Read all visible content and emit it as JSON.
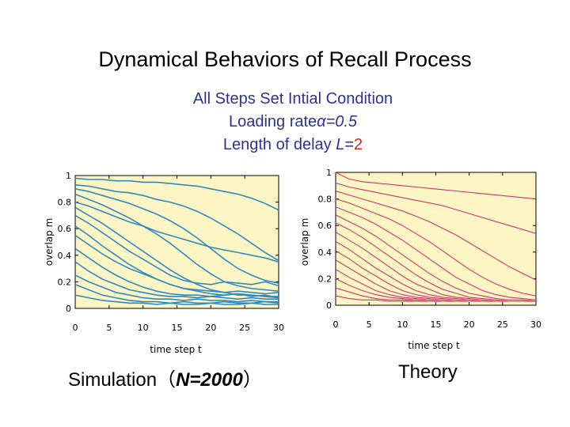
{
  "title": "Dynamical Behaviors of Recall Process",
  "subtitle": {
    "line1": "All Steps Set Intial Condition",
    "line2_prefix": "Loading rate",
    "line2_value": "α=0.5",
    "line3_prefix": "Length of delay ",
    "line3_var": "L",
    "line3_eq": "=",
    "line3_value": "2"
  },
  "captions": {
    "left_prefix": "Simulation（",
    "left_var": "N=2000",
    "left_suffix": "）",
    "right": "Theory"
  },
  "colors": {
    "plot_bg": "#fdf5c4",
    "simulation_line": "#2f8ac4",
    "theory_line": "#c8386a",
    "subtitle": "#2e3192",
    "highlight": "#e02020"
  },
  "chart_data": [
    {
      "type": "line",
      "panel": "simulation",
      "xlabel": "time step t",
      "ylabel": "overlap m",
      "xlim": [
        0,
        30
      ],
      "ylim": [
        0,
        1
      ],
      "xticks": [
        0,
        5,
        10,
        15,
        20,
        25,
        30
      ],
      "yticks": [
        0,
        0.2,
        0.4,
        0.6,
        0.8,
        1
      ],
      "ytick_labels": [
        "0",
        "0.2",
        "0.4",
        "0.6",
        "0.8",
        "1"
      ],
      "grid": false,
      "x": [
        0,
        2,
        4,
        6,
        8,
        10,
        12,
        14,
        16,
        18,
        20,
        22,
        24,
        26,
        28,
        30
      ],
      "series": [
        {
          "values": [
            0.98,
            0.97,
            0.97,
            0.96,
            0.96,
            0.95,
            0.95,
            0.94,
            0.93,
            0.92,
            0.9,
            0.88,
            0.86,
            0.83,
            0.79,
            0.74
          ]
        },
        {
          "values": [
            0.93,
            0.92,
            0.9,
            0.88,
            0.87,
            0.85,
            0.82,
            0.8,
            0.77,
            0.73,
            0.68,
            0.62,
            0.56,
            0.49,
            0.42,
            0.36
          ]
        },
        {
          "values": [
            0.9,
            0.88,
            0.85,
            0.82,
            0.79,
            0.75,
            0.71,
            0.66,
            0.6,
            0.53,
            0.45,
            0.37,
            0.3,
            0.25,
            0.21,
            0.19
          ]
        },
        {
          "values": [
            0.86,
            0.82,
            0.78,
            0.73,
            0.68,
            0.62,
            0.56,
            0.49,
            0.41,
            0.33,
            0.26,
            0.2,
            0.17,
            0.15,
            0.14,
            0.13
          ]
        },
        {
          "values": [
            0.8,
            0.77,
            0.73,
            0.69,
            0.65,
            0.62,
            0.58,
            0.55,
            0.52,
            0.49,
            0.46,
            0.44,
            0.42,
            0.4,
            0.38,
            0.35
          ]
        },
        {
          "values": [
            0.76,
            0.7,
            0.64,
            0.57,
            0.5,
            0.43,
            0.36,
            0.29,
            0.23,
            0.18,
            0.14,
            0.12,
            0.1,
            0.1,
            0.09,
            0.09
          ]
        },
        {
          "values": [
            0.7,
            0.64,
            0.57,
            0.5,
            0.43,
            0.37,
            0.31,
            0.25,
            0.21,
            0.19,
            0.18,
            0.2,
            0.19,
            0.18,
            0.2,
            0.17
          ]
        },
        {
          "values": [
            0.62,
            0.55,
            0.47,
            0.4,
            0.33,
            0.27,
            0.22,
            0.18,
            0.15,
            0.14,
            0.13,
            0.12,
            0.13,
            0.12,
            0.11,
            0.12
          ]
        },
        {
          "values": [
            0.55,
            0.48,
            0.41,
            0.35,
            0.3,
            0.26,
            0.22,
            0.18,
            0.15,
            0.13,
            0.11,
            0.1,
            0.11,
            0.1,
            0.09,
            0.08
          ]
        },
        {
          "values": [
            0.45,
            0.38,
            0.31,
            0.25,
            0.2,
            0.16,
            0.13,
            0.11,
            0.1,
            0.1,
            0.09,
            0.1,
            0.11,
            0.09,
            0.1,
            0.08
          ]
        },
        {
          "values": [
            0.35,
            0.28,
            0.22,
            0.18,
            0.14,
            0.12,
            0.1,
            0.09,
            0.09,
            0.08,
            0.09,
            0.08,
            0.07,
            0.08,
            0.07,
            0.07
          ]
        },
        {
          "values": [
            0.25,
            0.2,
            0.16,
            0.12,
            0.1,
            0.08,
            0.07,
            0.07,
            0.06,
            0.07,
            0.06,
            0.06,
            0.05,
            0.06,
            0.05,
            0.05
          ]
        },
        {
          "values": [
            0.18,
            0.14,
            0.1,
            0.08,
            0.06,
            0.05,
            0.05,
            0.04,
            0.05,
            0.04,
            0.04,
            0.05,
            0.04,
            0.04,
            0.05,
            0.04
          ]
        },
        {
          "values": [
            0.1,
            0.08,
            0.06,
            0.05,
            0.04,
            0.04,
            0.03,
            0.04,
            0.03,
            0.03,
            0.04,
            0.03,
            0.03,
            0.04,
            0.03,
            0.03
          ]
        }
      ]
    },
    {
      "type": "line",
      "panel": "theory",
      "xlabel": "time step t",
      "ylabel": "overlap m",
      "xlim": [
        0,
        30
      ],
      "ylim": [
        0,
        1
      ],
      "xticks": [
        0,
        5,
        10,
        15,
        20,
        25,
        30
      ],
      "yticks": [
        0,
        0.2,
        0.4,
        0.6,
        0.8,
        1
      ],
      "ytick_labels": [
        "0",
        "0.2",
        "0.4",
        "0.6",
        "0.8",
        "1"
      ],
      "grid": false,
      "x": [
        0,
        2,
        4,
        6,
        8,
        10,
        12,
        14,
        16,
        18,
        20,
        22,
        24,
        26,
        28,
        30
      ],
      "series": [
        {
          "values": [
            1.0,
            0.95,
            0.93,
            0.92,
            0.91,
            0.9,
            0.89,
            0.88,
            0.87,
            0.86,
            0.85,
            0.84,
            0.83,
            0.82,
            0.81,
            0.8
          ]
        },
        {
          "values": [
            0.92,
            0.89,
            0.87,
            0.85,
            0.83,
            0.81,
            0.79,
            0.77,
            0.75,
            0.72,
            0.69,
            0.66,
            0.63,
            0.6,
            0.57,
            0.54
          ]
        },
        {
          "values": [
            0.86,
            0.83,
            0.8,
            0.77,
            0.74,
            0.71,
            0.67,
            0.63,
            0.58,
            0.53,
            0.47,
            0.41,
            0.35,
            0.29,
            0.24,
            0.19
          ]
        },
        {
          "values": [
            0.8,
            0.77,
            0.73,
            0.69,
            0.65,
            0.6,
            0.54,
            0.48,
            0.41,
            0.34,
            0.27,
            0.21,
            0.16,
            0.12,
            0.09,
            0.07
          ]
        },
        {
          "values": [
            0.74,
            0.7,
            0.66,
            0.61,
            0.55,
            0.49,
            0.42,
            0.35,
            0.28,
            0.21,
            0.16,
            0.11,
            0.08,
            0.06,
            0.05,
            0.04
          ]
        },
        {
          "values": [
            0.68,
            0.63,
            0.58,
            0.52,
            0.45,
            0.38,
            0.31,
            0.24,
            0.18,
            0.13,
            0.09,
            0.07,
            0.05,
            0.04,
            0.04,
            0.03
          ]
        },
        {
          "values": [
            0.62,
            0.57,
            0.51,
            0.44,
            0.37,
            0.3,
            0.23,
            0.17,
            0.12,
            0.09,
            0.06,
            0.05,
            0.04,
            0.03,
            0.03,
            0.03
          ]
        },
        {
          "values": [
            0.55,
            0.49,
            0.43,
            0.36,
            0.29,
            0.22,
            0.16,
            0.12,
            0.08,
            0.06,
            0.05,
            0.04,
            0.03,
            0.03,
            0.03,
            0.03
          ]
        },
        {
          "values": [
            0.48,
            0.42,
            0.35,
            0.28,
            0.22,
            0.16,
            0.11,
            0.08,
            0.06,
            0.05,
            0.04,
            0.03,
            0.03,
            0.03,
            0.03,
            0.03
          ]
        },
        {
          "values": [
            0.41,
            0.35,
            0.28,
            0.22,
            0.16,
            0.11,
            0.08,
            0.06,
            0.05,
            0.04,
            0.03,
            0.03,
            0.03,
            0.03,
            0.03,
            0.03
          ]
        },
        {
          "values": [
            0.34,
            0.28,
            0.22,
            0.16,
            0.11,
            0.08,
            0.06,
            0.05,
            0.04,
            0.03,
            0.03,
            0.03,
            0.03,
            0.03,
            0.03,
            0.03
          ]
        },
        {
          "values": [
            0.27,
            0.21,
            0.16,
            0.11,
            0.08,
            0.06,
            0.05,
            0.04,
            0.03,
            0.03,
            0.03,
            0.03,
            0.03,
            0.03,
            0.03,
            0.03
          ]
        },
        {
          "values": [
            0.2,
            0.15,
            0.11,
            0.08,
            0.06,
            0.05,
            0.04,
            0.03,
            0.03,
            0.03,
            0.03,
            0.03,
            0.03,
            0.03,
            0.03,
            0.03
          ]
        },
        {
          "values": [
            0.13,
            0.1,
            0.07,
            0.05,
            0.04,
            0.04,
            0.03,
            0.03,
            0.03,
            0.03,
            0.03,
            0.03,
            0.03,
            0.03,
            0.03,
            0.03
          ]
        },
        {
          "values": [
            0.07,
            0.05,
            0.04,
            0.04,
            0.03,
            0.03,
            0.03,
            0.03,
            0.03,
            0.03,
            0.03,
            0.03,
            0.03,
            0.03,
            0.03,
            0.03
          ]
        }
      ]
    }
  ]
}
